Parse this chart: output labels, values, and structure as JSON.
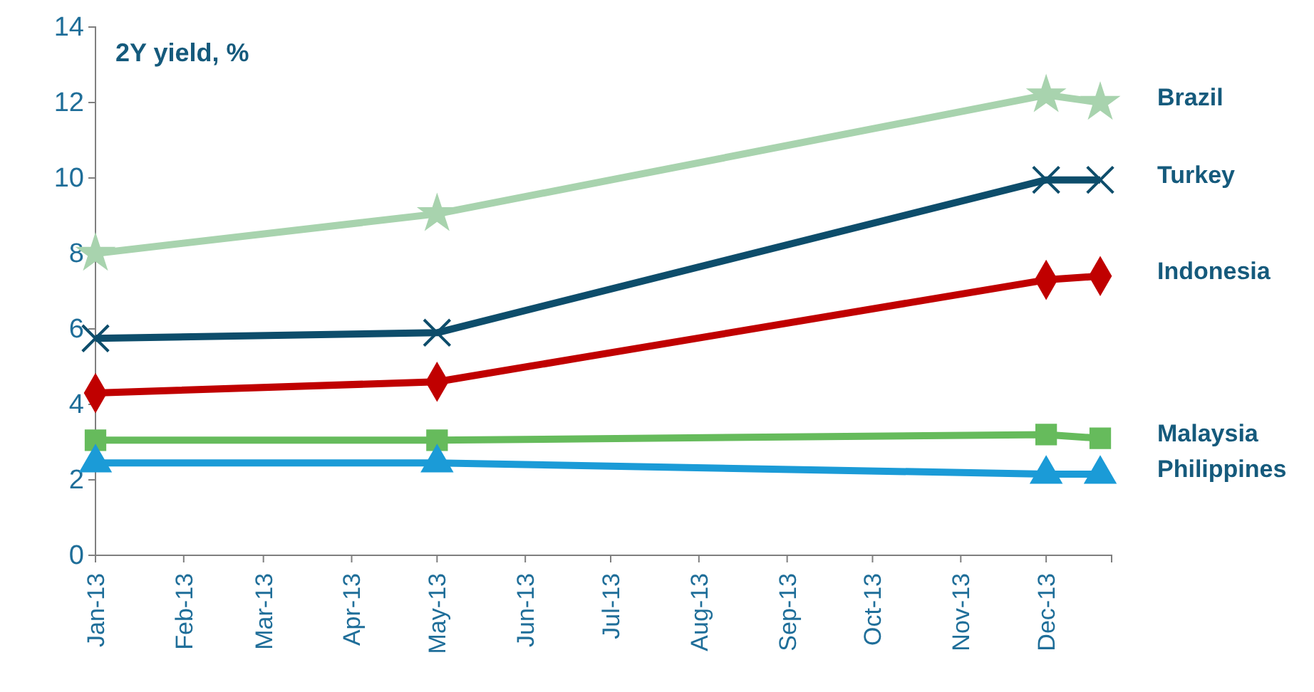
{
  "chart_data": {
    "type": "line",
    "title": "2Y yield, %",
    "x": [
      "2013-01-01",
      "2013-05-01",
      "2013-12-01",
      "2013-12-20"
    ],
    "xlim": [
      "2013-01-01",
      "2013-12-24"
    ],
    "xticks": [
      {
        "value": "2013-01-01",
        "label": "Jan-13"
      },
      {
        "value": "2013-02-01",
        "label": "Feb-13"
      },
      {
        "value": "2013-03-01",
        "label": "Mar-13"
      },
      {
        "value": "2013-04-01",
        "label": "Apr-13"
      },
      {
        "value": "2013-05-01",
        "label": "May-13"
      },
      {
        "value": "2013-06-01",
        "label": "Jun-13"
      },
      {
        "value": "2013-07-01",
        "label": "Jul-13"
      },
      {
        "value": "2013-08-01",
        "label": "Aug-13"
      },
      {
        "value": "2013-09-01",
        "label": "Sep-13"
      },
      {
        "value": "2013-10-01",
        "label": "Oct-13"
      },
      {
        "value": "2013-11-01",
        "label": "Nov-13"
      },
      {
        "value": "2013-12-01",
        "label": "Dec-13"
      }
    ],
    "ylim": [
      0,
      14
    ],
    "yticks": [
      0,
      2,
      4,
      6,
      8,
      10,
      12,
      14
    ],
    "grid": false,
    "legend": false,
    "line_style": "solid",
    "series": [
      {
        "name": "Brazil",
        "color": "#a8d3ae",
        "marker": "star",
        "values": [
          8.0,
          9.05,
          12.2,
          12.0
        ]
      },
      {
        "name": "Turkey",
        "color": "#0d4d6b",
        "marker": "cross",
        "values": [
          5.75,
          5.9,
          9.95,
          9.95
        ]
      },
      {
        "name": "Indonesia",
        "color": "#c00000",
        "marker": "diamond",
        "values": [
          4.3,
          4.6,
          7.3,
          7.4
        ]
      },
      {
        "name": "Malaysia",
        "color": "#66bb5c",
        "marker": "square",
        "values": [
          3.05,
          3.05,
          3.2,
          3.1
        ]
      },
      {
        "name": "Philippines",
        "color": "#1b9bd7",
        "marker": "triangle",
        "values": [
          2.45,
          2.45,
          2.15,
          2.15
        ]
      }
    ]
  }
}
